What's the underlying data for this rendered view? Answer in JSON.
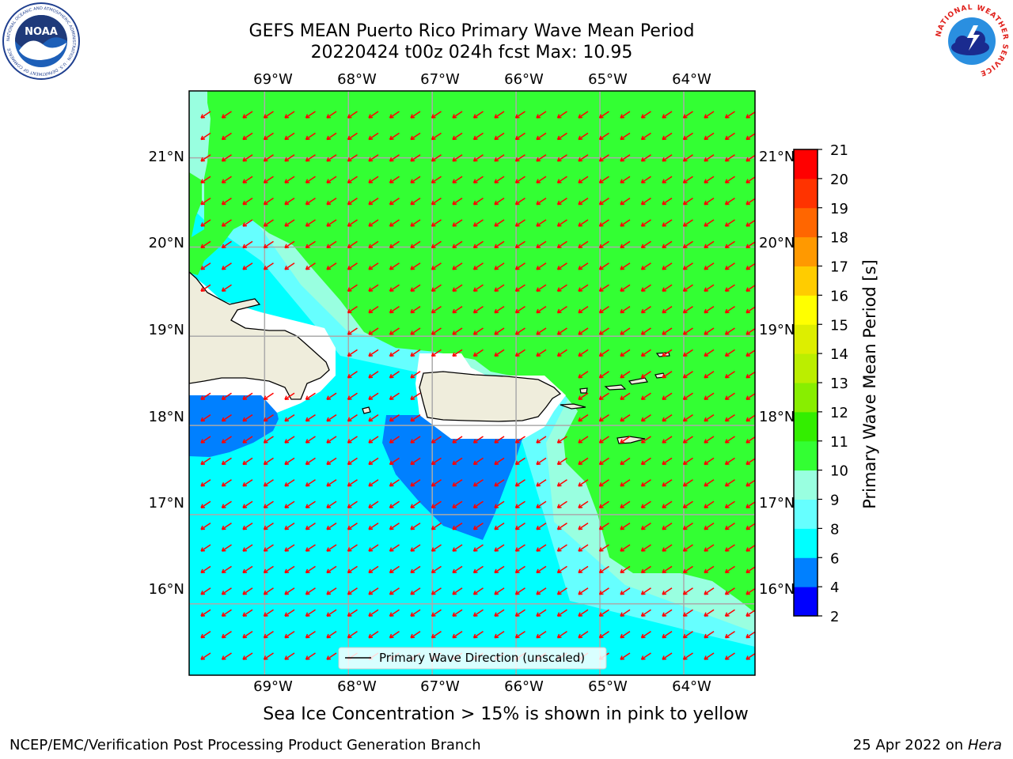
{
  "header": {
    "title_line1": "GEFS MEAN Puerto Rico Primary Wave Mean Period",
    "title_line2": "20220424 t00z 024h fcst   Max: 10.95"
  },
  "logos": {
    "left": "NOAA",
    "left_ring_text": "NATIONAL OCEANIC AND ATMOSPHERIC ADMINISTRATION · U.S. DEPARTMENT OF COMMERCE",
    "right_ring_text": "NATIONAL WEATHER SERVICE"
  },
  "map": {
    "longitude_labels": [
      "69°W",
      "68°W",
      "67°W",
      "66°W",
      "65°W",
      "64°W"
    ],
    "latitude_labels": [
      "21°N",
      "20°N",
      "19°N",
      "18°N",
      "17°N",
      "16°N"
    ],
    "extent": {
      "lon": [
        -69.9,
        -63.15
      ],
      "lat": [
        15.2,
        21.75
      ]
    },
    "legend_label": "Primary Wave Direction (unscaled)",
    "arrow_color": "#ff0000",
    "arrow_direction": "toward southwest",
    "period_max": 10.95
  },
  "colorbar": {
    "label": "Primary Wave Mean Period [s]",
    "ticks": [
      "2",
      "4",
      "6",
      "8",
      "9",
      "10",
      "11",
      "12",
      "13",
      "14",
      "15",
      "16",
      "17",
      "18",
      "19",
      "20",
      "21"
    ],
    "colors": [
      "#0000ff",
      "#0080ff",
      "#00ffff",
      "#66ffff",
      "#99ffe0",
      "#33ff33",
      "#33ee00",
      "#88ee00",
      "#bbee00",
      "#ddee00",
      "#ffff00",
      "#ffcc00",
      "#ff9900",
      "#ff6600",
      "#ff3300",
      "#ff0000"
    ]
  },
  "subtitle": "Sea Ice Concentration > 15% is shown in pink to yellow",
  "footer": {
    "left": "NCEP/EMC/Verification Post Processing Product Generation Branch",
    "date": "25 Apr 2022 on ",
    "machine": "Hera"
  }
}
